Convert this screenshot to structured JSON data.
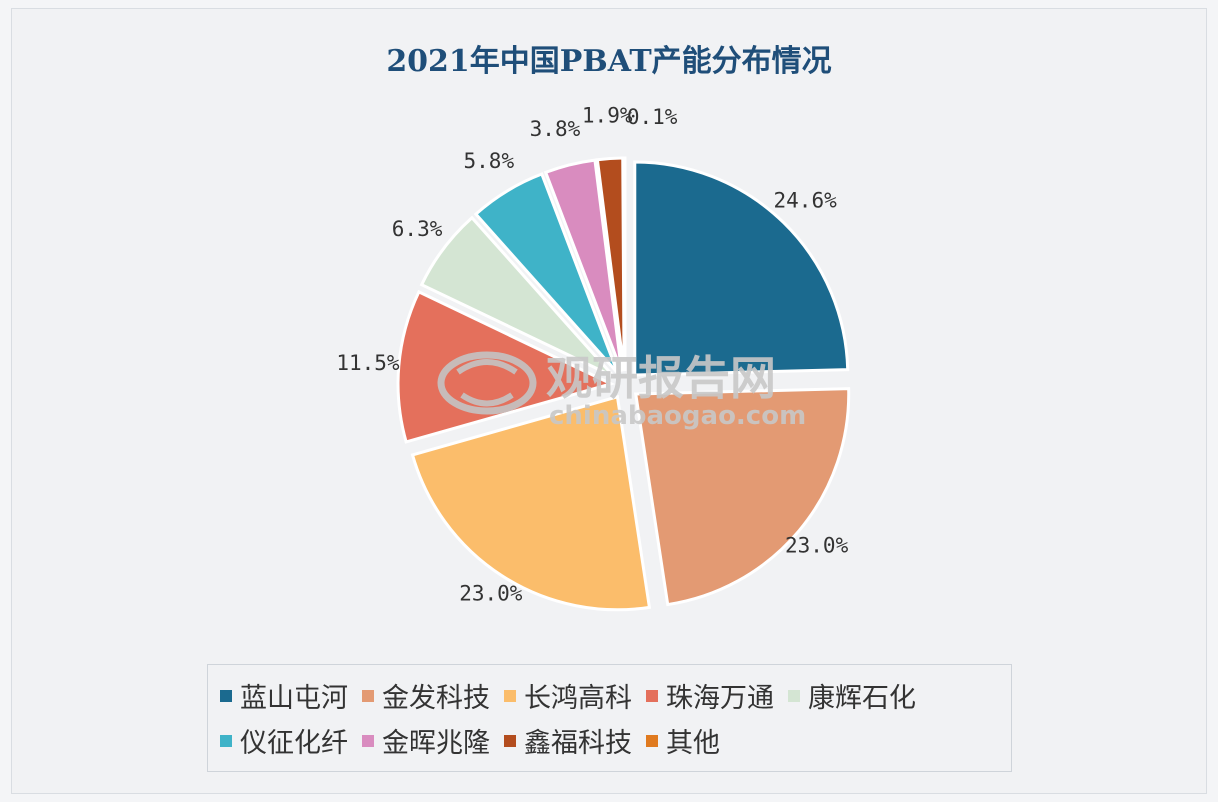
{
  "chart_data": {
    "type": "pie",
    "title": "2021年中国PBAT产能分布情况",
    "series": [
      {
        "name": "蓝山屯河",
        "value": 24.6,
        "label": "24.6%",
        "color": "#1b6a8f"
      },
      {
        "name": "金发科技",
        "value": 23.0,
        "label": "23.0%",
        "color": "#e39a73"
      },
      {
        "name": "长鸿高科",
        "value": 23.0,
        "label": "23.0%",
        "color": "#fbbd6b"
      },
      {
        "name": "珠海万通",
        "value": 11.5,
        "label": "11.5%",
        "color": "#e4705c"
      },
      {
        "name": "康辉石化",
        "value": 6.3,
        "label": "6.3%",
        "color": "#d4e5d3"
      },
      {
        "name": "仪征化纤",
        "value": 5.8,
        "label": "5.8%",
        "color": "#3fb3c8"
      },
      {
        "name": "金晖兆隆",
        "value": 3.8,
        "label": "3.8%",
        "color": "#d98cbf"
      },
      {
        "name": "鑫福科技",
        "value": 1.9,
        "label": "1.9%",
        "color": "#b34d1e"
      },
      {
        "name": "其他",
        "value": 0.1,
        "label": "0.1%",
        "color": "#e07a1f"
      }
    ],
    "legend_position": "bottom"
  },
  "watermark": {
    "text": "观研报告网",
    "sub": "chinabaogao.com"
  }
}
